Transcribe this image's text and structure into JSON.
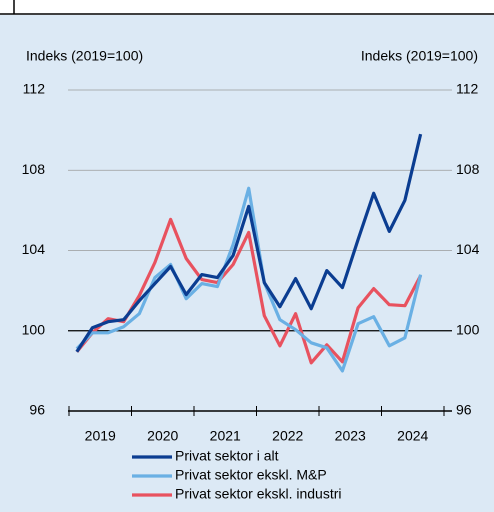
{
  "chart_data": {
    "type": "line",
    "y_label": "Indeks (2019=100)",
    "y2_label": "Indeks (2019=100)",
    "x": [
      2019.125,
      2019.375,
      2019.625,
      2019.875,
      2020.125,
      2020.375,
      2020.625,
      2020.875,
      2021.125,
      2021.375,
      2021.625,
      2021.875,
      2022.125,
      2022.375,
      2022.625,
      2022.875,
      2023.125,
      2023.375,
      2023.625,
      2023.875,
      2024.125,
      2024.375,
      2024.625
    ],
    "xlim": [
      2019,
      2025
    ],
    "xticks": [
      {
        "value": 2019.5,
        "label": "2019"
      },
      {
        "value": 2020.5,
        "label": "2020"
      },
      {
        "value": 2021.5,
        "label": "2021"
      },
      {
        "value": 2022.5,
        "label": "2022"
      },
      {
        "value": 2023.5,
        "label": "2023"
      },
      {
        "value": 2024.5,
        "label": "2024"
      }
    ],
    "ylim": [
      96,
      112
    ],
    "yticks": [
      96,
      100,
      104,
      108,
      112
    ],
    "y2lim": [
      96,
      112
    ],
    "y2ticks": [
      96,
      100,
      104,
      108,
      112
    ],
    "grid": true,
    "legend": "bottom",
    "series": [
      {
        "name": "Privat sektor i alt",
        "color": "#0b3d91",
        "values": [
          98.95,
          100.15,
          100.45,
          100.55,
          101.5,
          102.35,
          103.2,
          101.8,
          102.8,
          102.65,
          103.75,
          106.2,
          102.4,
          101.2,
          102.6,
          101.1,
          103.0,
          102.15,
          104.55,
          106.85,
          104.95,
          106.5,
          109.8
        ]
      },
      {
        "name": "Privat sektor ekskl. M&P",
        "color": "#6ab0e4",
        "values": [
          99.1,
          99.9,
          99.9,
          100.2,
          100.85,
          102.65,
          103.3,
          101.6,
          102.35,
          102.2,
          104.3,
          107.1,
          102.4,
          100.55,
          100.05,
          99.4,
          99.15,
          98.0,
          100.35,
          100.7,
          99.25,
          99.65,
          102.8
        ]
      },
      {
        "name": "Privat sektor ekskl. industri",
        "color": "#e8525f",
        "values": [
          98.95,
          99.9,
          100.6,
          100.45,
          101.75,
          103.4,
          105.55,
          103.6,
          102.55,
          102.4,
          103.3,
          104.9,
          100.75,
          99.25,
          100.85,
          98.4,
          99.3,
          98.45,
          101.15,
          102.1,
          101.3,
          101.25,
          102.75
        ]
      }
    ]
  }
}
